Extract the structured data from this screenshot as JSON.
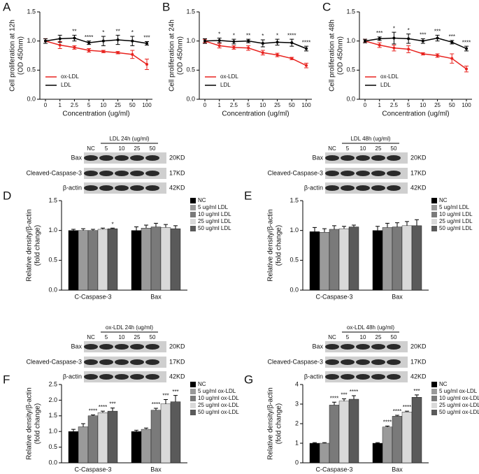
{
  "chart_data": [
    {
      "type": "line",
      "panel": "A",
      "ylabel": [
        "Cell proliferation at 12h",
        "(OD 450nm)"
      ],
      "xlabel": "Concentration (ug/ml)",
      "categories": [
        "0",
        "1",
        "2.5",
        "5",
        "10",
        "25",
        "50",
        "100"
      ],
      "ylim": [
        0,
        1.5
      ],
      "yticks": [
        {
          "value": 0,
          "label": "0.0"
        },
        0.5,
        {
          "value": 1,
          "label": "1.0"
        },
        1.5
      ],
      "legend": "lower left",
      "series": [
        {
          "name": "ox-LDL",
          "color": "#e8231f",
          "values": [
            1.0,
            0.93,
            0.89,
            0.84,
            0.82,
            0.8,
            0.77,
            0.6
          ],
          "errors": [
            0.04,
            0.06,
            0.03,
            0.03,
            0.02,
            0.02,
            0.07,
            0.09
          ]
        },
        {
          "name": "LDL",
          "color": "#000000",
          "values": [
            1.0,
            1.04,
            1.05,
            0.97,
            1.0,
            1.02,
            1.0,
            0.96
          ],
          "errors": [
            0.04,
            0.06,
            0.05,
            0.03,
            0.08,
            0.08,
            0.08,
            0.03
          ],
          "annotations": [
            null,
            null,
            "**",
            "****",
            "*",
            "**",
            "*",
            "***"
          ]
        }
      ]
    },
    {
      "type": "line",
      "panel": "B",
      "ylabel": [
        "Cell proliferation at 24h",
        "(OD 450nm)"
      ],
      "xlabel": "Concentration (ug/ml)",
      "categories": [
        "0",
        "1",
        "2.5",
        "5",
        "10",
        "25",
        "50",
        "100"
      ],
      "ylim": [
        0,
        1.5
      ],
      "yticks": [
        {
          "value": 0,
          "label": "0.0"
        },
        0.5,
        {
          "value": 1,
          "label": "1.0"
        },
        1.5
      ],
      "legend": "lower left",
      "series": [
        {
          "name": "ox-LDL",
          "color": "#e8231f",
          "values": [
            1.0,
            0.92,
            0.89,
            0.88,
            0.8,
            0.76,
            0.7,
            0.58
          ],
          "errors": [
            0.03,
            0.04,
            0.03,
            0.04,
            0.04,
            0.03,
            0.02,
            0.04
          ]
        },
        {
          "name": "LDL",
          "color": "#000000",
          "values": [
            1.0,
            1.01,
            0.99,
            1.0,
            0.96,
            0.98,
            0.97,
            0.87
          ],
          "errors": [
            0.04,
            0.04,
            0.04,
            0.03,
            0.06,
            0.05,
            0.06,
            0.04
          ],
          "annotations": [
            null,
            "*",
            "*",
            "**",
            "*",
            "*",
            "****",
            "****"
          ]
        }
      ]
    },
    {
      "type": "line",
      "panel": "C",
      "ylabel": [
        "Cell proliferation at 48h",
        "(OD 450nm)"
      ],
      "xlabel": "Concentration (ug/ml)",
      "categories": [
        "0",
        "1",
        "2.5",
        "5",
        "10",
        "25",
        "50",
        "100"
      ],
      "ylim": [
        0,
        1.5
      ],
      "yticks": [
        {
          "value": 0,
          "label": "0.0"
        },
        0.5,
        {
          "value": 1,
          "label": "1.0"
        },
        1.5
      ],
      "legend": "lower left",
      "series": [
        {
          "name": "ox-LDL",
          "color": "#e8231f",
          "values": [
            1.0,
            0.93,
            0.88,
            0.86,
            0.78,
            0.75,
            0.7,
            0.52
          ],
          "errors": [
            0.03,
            0.04,
            0.05,
            0.06,
            0.02,
            0.03,
            0.08,
            0.05
          ]
        },
        {
          "name": "LDL",
          "color": "#000000",
          "values": [
            1.0,
            1.04,
            1.05,
            1.04,
            1.0,
            1.05,
            0.98,
            0.87
          ],
          "errors": [
            0.03,
            0.03,
            0.1,
            0.08,
            0.04,
            0.05,
            0.03,
            0.04
          ],
          "annotations": [
            null,
            "***",
            "*",
            "*",
            "***",
            "***",
            "***",
            "****"
          ]
        }
      ]
    },
    {
      "type": "bar",
      "panel": "D",
      "blot": {
        "title": "LDL 24h (ug/ml)",
        "lanes": [
          "NC",
          "5",
          "10",
          "25",
          "50"
        ],
        "rows": [
          {
            "label": "Bax",
            "size": "20KD"
          },
          {
            "label": "Cleaved-Caspase-3",
            "size": "17KD"
          },
          {
            "label": "β-actin",
            "size": "42KD"
          }
        ]
      },
      "ylabel": [
        "Relative density/β-actin",
        "(fold change)"
      ],
      "categories": [
        "C-Caspase-3",
        "Bax"
      ],
      "ylim": [
        0,
        1.5
      ],
      "yticks": [
        {
          "value": 0,
          "label": "0.0"
        },
        0.5,
        {
          "value": 1,
          "label": "1.0"
        },
        1.5
      ],
      "legend": "upper right",
      "series": [
        {
          "name": "NC",
          "color": "#000000",
          "values": [
            1.0,
            1.0
          ],
          "errors": [
            0.02,
            0.06
          ],
          "annotations": [
            null,
            null
          ]
        },
        {
          "name": "5 ug/ml LDL",
          "color": "#9a9a9a",
          "values": [
            1.0,
            1.04
          ],
          "errors": [
            0.03,
            0.05
          ],
          "annotations": [
            null,
            null
          ]
        },
        {
          "name": "10 ug/ml LDL",
          "color": "#7a7a7a",
          "values": [
            1.0,
            1.06
          ],
          "errors": [
            0.02,
            0.06
          ],
          "annotations": [
            null,
            null
          ]
        },
        {
          "name": "25 ug/ml LDL",
          "color": "#d9d9d9",
          "values": [
            1.02,
            1.05
          ],
          "errors": [
            0.02,
            0.05
          ],
          "annotations": [
            null,
            null
          ]
        },
        {
          "name": "50 ug/ml LDL",
          "color": "#5a5a5a",
          "values": [
            1.03,
            1.03
          ],
          "errors": [
            0.01,
            0.05
          ],
          "annotations": [
            "*",
            null
          ]
        }
      ]
    },
    {
      "type": "bar",
      "panel": "E",
      "blot": {
        "title": "LDL 48h (ug/ml)",
        "lanes": [
          "NC",
          "5",
          "10",
          "25",
          "50"
        ],
        "rows": [
          {
            "label": "Bax",
            "size": "20KD"
          },
          {
            "label": "Cleaved-Caspase-3",
            "size": "17KD"
          },
          {
            "label": "β-actin",
            "size": "42KD"
          }
        ]
      },
      "ylabel": [
        "Relative density/β-actin",
        "(fold change)"
      ],
      "categories": [
        "C-Caspase-3",
        "Bax"
      ],
      "ylim": [
        0,
        1.5
      ],
      "yticks": [
        {
          "value": 0,
          "label": "0.0"
        },
        0.5,
        {
          "value": 1,
          "label": "1.0"
        },
        1.5
      ],
      "legend": "upper right",
      "series": [
        {
          "name": "NC",
          "color": "#000000",
          "values": [
            0.98,
            1.0
          ],
          "errors": [
            0.07,
            0.07
          ],
          "annotations": [
            null,
            null
          ]
        },
        {
          "name": "5 ug/ml LDL",
          "color": "#9a9a9a",
          "values": [
            0.97,
            1.05
          ],
          "errors": [
            0.06,
            0.07
          ],
          "annotations": [
            null,
            null
          ]
        },
        {
          "name": "10 ug/ml LDL",
          "color": "#7a7a7a",
          "values": [
            1.02,
            1.06
          ],
          "errors": [
            0.06,
            0.07
          ],
          "annotations": [
            null,
            null
          ]
        },
        {
          "name": "25 ug/ml LDL",
          "color": "#d9d9d9",
          "values": [
            1.03,
            1.08
          ],
          "errors": [
            0.04,
            0.07
          ],
          "annotations": [
            null,
            null
          ]
        },
        {
          "name": "50 ug/ml LDL",
          "color": "#5a5a5a",
          "values": [
            1.06,
            1.08
          ],
          "errors": [
            0.03,
            0.1
          ],
          "annotations": [
            null,
            null
          ]
        }
      ]
    },
    {
      "type": "bar",
      "panel": "F",
      "blot": {
        "title": "ox-LDL 24h (ug/ml)",
        "lanes": [
          "NC",
          "5",
          "10",
          "25",
          "50"
        ],
        "rows": [
          {
            "label": "Bax",
            "size": "20KD"
          },
          {
            "label": "Cleaved-Caspase-3",
            "size": "17KD"
          },
          {
            "label": "β-actin",
            "size": "42KD"
          }
        ]
      },
      "ylabel": [
        "Relative density/β-actin",
        "(fold change)"
      ],
      "categories": [
        "C-Caspase-3",
        "Bax"
      ],
      "ylim": [
        0,
        2.5
      ],
      "yticks": [
        {
          "value": 0,
          "label": "0.0"
        },
        0.5,
        {
          "value": 1,
          "label": "1.0"
        },
        1.5,
        {
          "value": 2,
          "label": "2.0"
        },
        2.5
      ],
      "legend": "upper right",
      "series": [
        {
          "name": "NC",
          "color": "#000000",
          "values": [
            1.0,
            1.0
          ],
          "errors": [
            0.07,
            0.04
          ],
          "annotations": [
            null,
            null
          ]
        },
        {
          "name": "5 ug/ml ox-LDL",
          "color": "#9a9a9a",
          "values": [
            1.15,
            1.07
          ],
          "errors": [
            0.1,
            0.04
          ],
          "annotations": [
            null,
            null
          ]
        },
        {
          "name": "10 ug/ml ox-LDL",
          "color": "#7a7a7a",
          "values": [
            1.5,
            1.68
          ],
          "errors": [
            0.03,
            0.06
          ],
          "annotations": [
            "****",
            "****"
          ]
        },
        {
          "name": "25 ug/ml ox-LDL",
          "color": "#d9d9d9",
          "values": [
            1.6,
            1.88
          ],
          "errors": [
            0.05,
            0.14
          ],
          "annotations": [
            "****",
            "***"
          ]
        },
        {
          "name": "50 ug/ml ox-LDL",
          "color": "#5a5a5a",
          "values": [
            1.65,
            1.95
          ],
          "errors": [
            0.1,
            0.2
          ],
          "annotations": [
            "***",
            "***"
          ]
        }
      ]
    },
    {
      "type": "bar",
      "panel": "G",
      "blot": {
        "title": "ox-LDL 48h (ug/ml)",
        "lanes": [
          "NC",
          "5",
          "10",
          "25",
          "50"
        ],
        "rows": [
          {
            "label": "Bax",
            "size": "20KD"
          },
          {
            "label": "Cleaved-Caspase-3",
            "size": "17KD"
          },
          {
            "label": "β-actin",
            "size": "42KD"
          }
        ]
      },
      "ylabel": [
        "Relative density/β-actin",
        "(fold change)"
      ],
      "categories": [
        "C-Caspase-3",
        "Bax"
      ],
      "ylim": [
        0,
        4
      ],
      "yticks": [
        0,
        1,
        2,
        3,
        4
      ],
      "legend": "upper right",
      "series": [
        {
          "name": "NC",
          "color": "#000000",
          "values": [
            1.0,
            1.0
          ],
          "errors": [
            0.03,
            0.03
          ],
          "annotations": [
            null,
            null
          ]
        },
        {
          "name": "5 ug/ml ox-LDL",
          "color": "#9a9a9a",
          "values": [
            1.0,
            1.83
          ],
          "errors": [
            0.03,
            0.05
          ],
          "annotations": [
            null,
            "****"
          ]
        },
        {
          "name": "10 ug/ml ox-LDL",
          "color": "#7a7a7a",
          "values": [
            2.95,
            2.38
          ],
          "errors": [
            0.15,
            0.05
          ],
          "annotations": [
            "****",
            "****"
          ]
        },
        {
          "name": "25 ug/ml ox-LDL",
          "color": "#d9d9d9",
          "values": [
            3.15,
            2.6
          ],
          "errors": [
            0.12,
            0.04
          ],
          "annotations": [
            "***",
            "****"
          ]
        },
        {
          "name": "50 ug/ml ox-LDL",
          "color": "#5a5a5a",
          "values": [
            3.25,
            3.35
          ],
          "errors": [
            0.18,
            0.12
          ],
          "annotations": [
            "****",
            "***"
          ]
        }
      ]
    }
  ]
}
